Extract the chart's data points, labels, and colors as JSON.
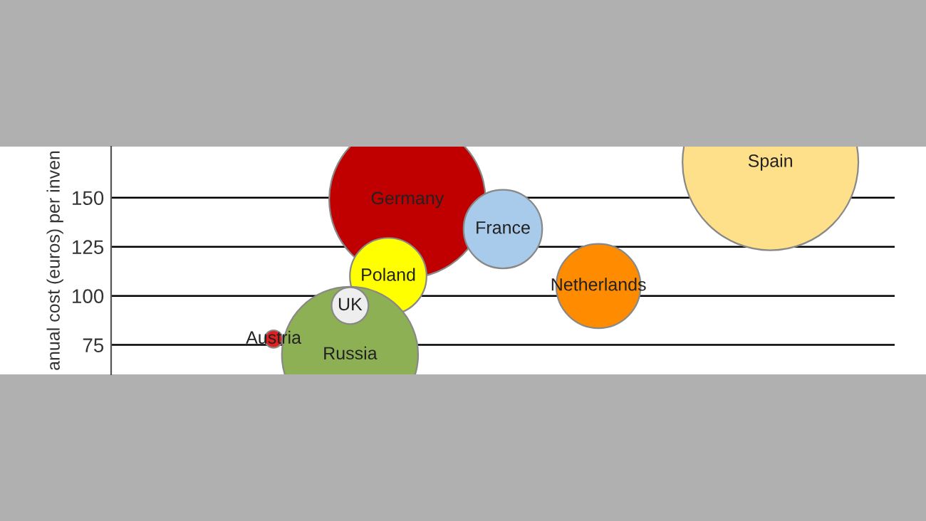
{
  "chart_data": {
    "type": "bubble",
    "ylabel": "anual cost (euros) per inven",
    "categories": [
      null,
      null,
      null,
      null,
      null,
      null,
      null,
      null,
      null,
      null,
      null,
      null,
      null,
      null,
      null,
      null,
      null,
      null,
      null,
      null,
      null,
      null,
      null,
      null,
      null,
      null,
      null,
      null,
      null,
      null,
      null,
      null,
      null,
      null,
      null,
      null,
      null,
      null,
      null,
      null,
      null
    ],
    "ylim": [
      60,
      176
    ],
    "yticks": [
      75,
      100,
      125,
      150
    ],
    "grid": "y",
    "tick_labels": "y",
    "legend": false,
    "series": [
      {
        "name": "Germany",
        "color": "#c00000",
        "values": [
          null,
          null,
          null,
          null,
          null,
          null,
          null,
          null,
          null,
          null,
          null,
          null,
          null,
          null,
          null,
          149,
          null,
          null,
          null,
          null,
          null,
          null,
          null,
          null,
          null,
          null,
          null,
          null,
          null,
          null,
          null,
          null,
          null,
          null,
          null,
          null,
          null,
          null,
          null,
          null,
          null
        ],
        "sizes": [
          null,
          null,
          null,
          null,
          null,
          null,
          null,
          null,
          null,
          null,
          null,
          null,
          null,
          null,
          null,
          0.79,
          null,
          null,
          null,
          null,
          null,
          null,
          null,
          null,
          null,
          null,
          null,
          null,
          null,
          null,
          null,
          null,
          null,
          null,
          null,
          null,
          null,
          null,
          null,
          null,
          null
        ]
      },
      {
        "name": "Spain",
        "color": "#ffe08a",
        "values": [
          null,
          null,
          null,
          null,
          null,
          null,
          null,
          null,
          null,
          null,
          null,
          null,
          null,
          null,
          null,
          null,
          null,
          null,
          null,
          null,
          null,
          null,
          null,
          null,
          null,
          null,
          null,
          null,
          null,
          null,
          null,
          null,
          null,
          null,
          168,
          null,
          null,
          null,
          null,
          null,
          null
        ],
        "sizes": [
          null,
          null,
          null,
          null,
          null,
          null,
          null,
          null,
          null,
          null,
          null,
          null,
          null,
          null,
          null,
          null,
          null,
          null,
          null,
          null,
          null,
          null,
          null,
          null,
          null,
          null,
          null,
          null,
          null,
          null,
          null,
          null,
          null,
          null,
          1,
          null,
          null,
          null,
          null,
          null,
          null
        ]
      },
      {
        "name": "France",
        "color": "#a9cbeb",
        "values": [
          null,
          null,
          null,
          null,
          null,
          null,
          null,
          null,
          null,
          null,
          null,
          null,
          null,
          null,
          null,
          null,
          null,
          null,
          null,
          null,
          134,
          null,
          null,
          null,
          null,
          null,
          null,
          null,
          null,
          null,
          null,
          null,
          null,
          null,
          null,
          null,
          null,
          null,
          null,
          null,
          null
        ],
        "sizes": [
          null,
          null,
          null,
          null,
          null,
          null,
          null,
          null,
          null,
          null,
          null,
          null,
          null,
          null,
          null,
          null,
          null,
          null,
          null,
          null,
          0.2,
          null,
          null,
          null,
          null,
          null,
          null,
          null,
          null,
          null,
          null,
          null,
          null,
          null,
          null,
          null,
          null,
          null,
          null,
          null,
          null
        ]
      },
      {
        "name": "Netherlands",
        "color": "#ff8c00",
        "values": [
          null,
          null,
          null,
          null,
          null,
          null,
          null,
          null,
          null,
          null,
          null,
          null,
          null,
          null,
          null,
          null,
          null,
          null,
          null,
          null,
          null,
          null,
          null,
          null,
          null,
          105,
          null,
          null,
          null,
          null,
          null,
          null,
          null,
          null,
          null,
          null,
          null,
          null,
          null,
          null,
          null
        ],
        "sizes": [
          null,
          null,
          null,
          null,
          null,
          null,
          null,
          null,
          null,
          null,
          null,
          null,
          null,
          null,
          null,
          null,
          null,
          null,
          null,
          null,
          null,
          null,
          null,
          null,
          null,
          0.23,
          null,
          null,
          null,
          null,
          null,
          null,
          null,
          null,
          null,
          null,
          null,
          null,
          null,
          null,
          null
        ]
      },
      {
        "name": "Poland",
        "color": "#ffff00",
        "values": [
          null,
          null,
          null,
          null,
          null,
          null,
          null,
          null,
          null,
          null,
          null,
          null,
          null,
          null,
          110,
          null,
          null,
          null,
          null,
          null,
          null,
          null,
          null,
          null,
          null,
          null,
          null,
          null,
          null,
          null,
          null,
          null,
          null,
          null,
          null,
          null,
          null,
          null,
          null,
          null,
          null
        ],
        "sizes": [
          null,
          null,
          null,
          null,
          null,
          null,
          null,
          null,
          null,
          null,
          null,
          null,
          null,
          null,
          0.19,
          null,
          null,
          null,
          null,
          null,
          null,
          null,
          null,
          null,
          null,
          null,
          null,
          null,
          null,
          null,
          null,
          null,
          null,
          null,
          null,
          null,
          null,
          null,
          null,
          null,
          null
        ]
      },
      {
        "name": "Russia",
        "color": "#8db054",
        "values": [
          null,
          null,
          null,
          null,
          null,
          null,
          null,
          null,
          null,
          null,
          null,
          null,
          70,
          null,
          null,
          null,
          null,
          null,
          null,
          null,
          null,
          null,
          null,
          null,
          null,
          null,
          null,
          null,
          null,
          null,
          null,
          null,
          null,
          null,
          null,
          null,
          null,
          null,
          null,
          null,
          null
        ],
        "sizes": [
          null,
          null,
          null,
          null,
          null,
          null,
          null,
          null,
          null,
          null,
          null,
          null,
          0.6,
          null,
          null,
          null,
          null,
          null,
          null,
          null,
          null,
          null,
          null,
          null,
          null,
          null,
          null,
          null,
          null,
          null,
          null,
          null,
          null,
          null,
          null,
          null,
          null,
          null,
          null,
          null,
          null
        ]
      },
      {
        "name": "UK",
        "color": "#eeeeee",
        "values": [
          null,
          null,
          null,
          null,
          null,
          null,
          null,
          null,
          null,
          null,
          null,
          null,
          95,
          null,
          null,
          null,
          null,
          null,
          null,
          null,
          null,
          null,
          null,
          null,
          null,
          null,
          null,
          null,
          null,
          null,
          null,
          null,
          null,
          null,
          null,
          null,
          null,
          null,
          null,
          null,
          null
        ],
        "sizes": [
          null,
          null,
          null,
          null,
          null,
          null,
          null,
          null,
          null,
          null,
          null,
          null,
          0.044,
          null,
          null,
          null,
          null,
          null,
          null,
          null,
          null,
          null,
          null,
          null,
          null,
          null,
          null,
          null,
          null,
          null,
          null,
          null,
          null,
          null,
          null,
          null,
          null,
          null,
          null,
          null,
          null
        ]
      },
      {
        "name": "Austria",
        "color": "#e02020",
        "values": [
          null,
          null,
          null,
          null,
          null,
          null,
          null,
          null,
          78,
          null,
          null,
          null,
          null,
          null,
          null,
          null,
          null,
          null,
          null,
          null,
          null,
          null,
          null,
          null,
          null,
          null,
          null,
          null,
          null,
          null,
          null,
          null,
          null,
          null,
          null,
          null,
          null,
          null,
          null,
          null,
          null
        ],
        "sizes": [
          null,
          null,
          null,
          null,
          null,
          null,
          null,
          null,
          0.01,
          null,
          null,
          null,
          null,
          null,
          null,
          null,
          null,
          null,
          null,
          null,
          null,
          null,
          null,
          null,
          null,
          null,
          null,
          null,
          null,
          null,
          null,
          null,
          null,
          null,
          null,
          null,
          null,
          null,
          null,
          null,
          null
        ]
      }
    ]
  }
}
